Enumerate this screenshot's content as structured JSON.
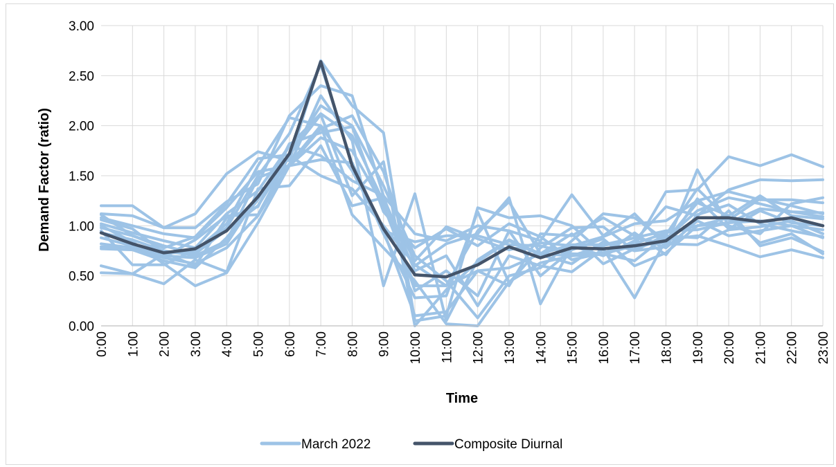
{
  "chart_data": {
    "type": "line",
    "title": "",
    "xlabel": "Time",
    "ylabel": "Demand Factor (ratio)",
    "ylim": [
      0,
      3
    ],
    "yticks": [
      "0.00",
      "0.50",
      "1.00",
      "1.50",
      "2.00",
      "2.50",
      "3.00"
    ],
    "categories": [
      "0:00",
      "1:00",
      "2:00",
      "3:00",
      "4:00",
      "5:00",
      "6:00",
      "7:00",
      "8:00",
      "9:00",
      "10:00",
      "11:00",
      "12:00",
      "13:00",
      "14:00",
      "15:00",
      "16:00",
      "17:00",
      "18:00",
      "19:00",
      "20:00",
      "21:00",
      "22:00",
      "23:00"
    ],
    "grid": true,
    "legend_position": "bottom",
    "legend": [
      {
        "name": "March 2022",
        "color": "#9dc3e6"
      },
      {
        "name": "Composite Diurnal",
        "color": "#44546a"
      }
    ],
    "daily_series_color": "#9dc3e6",
    "composite_color": "#44546a",
    "daily_series": [
      [
        1.2,
        1.2,
        0.98,
        1.12,
        1.52,
        1.74,
        1.65,
        2.65,
        2.2,
        1.93,
        0.05,
        0.1,
        1.18,
        1.08,
        1.1,
        1.0,
        0.72,
        0.8,
        1.34,
        1.36,
        1.69,
        1.6,
        1.71,
        1.59
      ],
      [
        1.12,
        1.1,
        0.98,
        0.98,
        1.24,
        1.42,
        2.1,
        2.4,
        2.3,
        1.3,
        0.92,
        0.85,
        1.0,
        0.95,
        0.85,
        1.31,
        0.9,
        1.12,
        0.8,
        1.56,
        1.0,
        0.92,
        1.22,
        1.28
      ],
      [
        1.08,
        1.0,
        0.92,
        0.88,
        1.18,
        1.54,
        1.6,
        1.97,
        2.1,
        1.54,
        0.6,
        0.82,
        0.92,
        1.28,
        0.22,
        0.8,
        0.7,
        0.85,
        1.19,
        1.1,
        1.36,
        1.46,
        1.45,
        1.46
      ],
      [
        1.02,
        0.93,
        0.85,
        0.78,
        1.12,
        1.35,
        1.8,
        2.12,
        1.9,
        1.24,
        0.65,
        0.99,
        0.87,
        0.76,
        0.83,
        0.8,
        0.89,
        1.02,
        1.05,
        1.25,
        1.34,
        1.26,
        1.26,
        1.23
      ],
      [
        0.98,
        0.9,
        0.8,
        0.72,
        0.96,
        1.2,
        1.7,
        2.2,
        2.0,
        1.4,
        0.7,
        0.45,
        0.08,
        0.5,
        0.58,
        0.85,
        1.12,
        1.08,
        0.85,
        1.23,
        1.1,
        1.3,
        1.1,
        1.07
      ],
      [
        0.93,
        0.86,
        0.75,
        0.7,
        0.85,
        1.48,
        1.6,
        1.88,
        1.75,
        1.2,
        0.4,
        0.4,
        0.95,
        1.24,
        0.72,
        0.92,
        0.62,
        0.77,
        0.87,
        1.15,
        1.28,
        1.22,
        1.14,
        1.09
      ],
      [
        0.88,
        0.8,
        0.7,
        0.68,
        0.82,
        1.3,
        1.6,
        2.3,
        1.85,
        0.4,
        1.32,
        0.05,
        0.66,
        0.86,
        0.72,
        0.7,
        0.8,
        0.88,
        0.95,
        0.96,
        1.03,
        1.05,
        1.0,
        0.96
      ],
      [
        0.82,
        0.78,
        0.68,
        0.62,
        0.78,
        1.1,
        1.62,
        2.0,
        1.55,
        0.95,
        0.1,
        0.14,
        0.55,
        0.4,
        0.92,
        0.9,
        1.08,
        0.9,
        0.78,
        1.05,
        0.9,
        0.95,
        1.0,
        0.88
      ],
      [
        0.77,
        0.76,
        0.65,
        0.58,
        0.88,
        1.26,
        1.8,
        1.7,
        1.45,
        1.3,
        0.35,
        0.55,
        0.3,
        0.95,
        0.5,
        0.76,
        0.87,
        0.6,
        0.73,
        1.0,
        1.08,
        0.83,
        0.92,
        0.72
      ],
      [
        0.6,
        0.52,
        0.72,
        0.75,
        1.02,
        1.6,
        2.08,
        2.0,
        1.11,
        0.78,
        0.45,
        0.02,
        0.0,
        0.44,
        0.63,
        0.7,
        0.72,
        0.65,
        0.9,
        0.88,
        1.15,
        0.8,
        0.88,
        0.74
      ],
      [
        0.53,
        0.52,
        0.42,
        0.66,
        0.54,
        1.37,
        1.4,
        1.8,
        1.2,
        1.28,
        0.55,
        0.7,
        0.2,
        0.7,
        0.6,
        0.54,
        0.77,
        0.28,
        0.86,
        0.9,
        0.8,
        0.69,
        0.76,
        0.68
      ],
      [
        1.0,
        0.84,
        0.62,
        0.4,
        0.53,
        1.03,
        1.6,
        1.66,
        1.63,
        0.95,
        0.84,
        0.9,
        0.9,
        0.81,
        0.8,
        0.72,
        0.71,
        0.93,
        0.71,
        1.11,
        1.21,
        1.02,
        0.95,
        0.89
      ],
      [
        1.11,
        0.9,
        0.78,
        0.89,
        1.22,
        1.67,
        1.71,
        2.11,
        1.3,
        1.64,
        0.0,
        0.36,
        0.64,
        0.85,
        0.71,
        0.62,
        0.84,
        0.75,
        0.79,
        1.27,
        0.97,
        1.15,
        1.03,
        1.0
      ],
      [
        0.95,
        0.61,
        0.61,
        0.76,
        0.98,
        1.5,
        1.92,
        2.61,
        1.62,
        0.92,
        0.28,
        0.3,
        1.14,
        0.43,
        0.78,
        0.98,
        0.99,
        0.75,
        0.91,
        1.37,
        1.06,
        1.27,
        1.2,
        1.12
      ],
      [
        1.06,
        0.97,
        0.73,
        0.6,
        1.08,
        1.19,
        1.82,
        1.93,
        1.99,
        1.14,
        0.78,
        0.97,
        0.8,
        1.02,
        0.89,
        0.66,
        0.73,
        0.82,
        0.93,
        1.0,
        1.03,
        1.17,
        1.14,
        1.13
      ],
      [
        0.79,
        0.79,
        0.69,
        0.86,
        1.1,
        1.11,
        1.7,
        1.5,
        1.37,
        1.0,
        0.61,
        0.4,
        0.55,
        0.58,
        0.72,
        0.81,
        0.81,
        0.88,
        0.82,
        0.81,
        0.96,
        0.99,
        1.05,
        0.92
      ]
    ],
    "composite": [
      0.93,
      0.82,
      0.73,
      0.77,
      0.95,
      1.29,
      1.72,
      2.64,
      1.6,
      0.97,
      0.51,
      0.49,
      0.61,
      0.79,
      0.68,
      0.78,
      0.77,
      0.8,
      0.85,
      1.08,
      1.08,
      1.04,
      1.08,
      1.0
    ]
  }
}
